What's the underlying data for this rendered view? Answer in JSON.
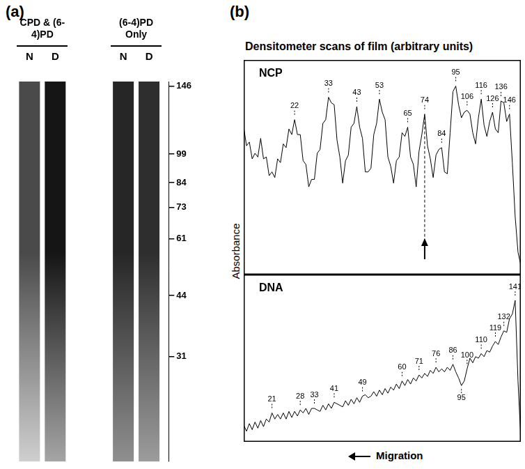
{
  "panels": [
    {
      "label": "(a)",
      "gel": {
        "groups": [
          {
            "title": "CPD & (6-4)PD",
            "lanes": [
              "N",
              "D"
            ]
          },
          {
            "title": "(6-4)PD Only",
            "lanes": [
              "N",
              "D"
            ]
          }
        ],
        "log": "y",
        "ylim": [
          17,
          150
        ],
        "yticks": [
          146,
          99,
          84,
          73,
          61,
          44,
          31
        ]
      }
    },
    {
      "label": "(b)",
      "title": "Densitometer scans of film (arbitrary units)",
      "y_label": "Absorbance",
      "x_label": "Migration"
    }
  ],
  "chart_data": [
    {
      "type": "line",
      "title": "NCP",
      "color": "#000000",
      "grid": false,
      "tick_labels": false,
      "xlim": [
        0,
        98
      ],
      "ylim": [
        0,
        115
      ],
      "x": [
        0,
        1,
        2,
        3,
        4,
        5,
        6,
        7,
        8,
        9,
        10,
        11,
        12,
        13,
        14,
        15,
        16,
        17,
        18,
        19,
        20,
        21,
        22,
        23,
        24,
        25,
        26,
        27,
        28,
        29,
        30,
        31,
        32,
        33,
        34,
        35,
        36,
        37,
        38,
        39,
        40,
        41,
        42,
        43,
        44,
        45,
        46,
        47,
        48,
        49,
        50,
        51,
        52,
        53,
        54,
        55,
        56,
        57,
        58,
        59,
        60,
        61,
        62,
        63,
        64,
        65,
        66,
        67,
        68,
        69,
        70,
        71,
        72,
        73,
        74,
        75,
        76,
        77,
        78,
        79,
        80,
        81,
        82,
        83,
        84,
        85,
        86,
        87,
        88,
        89,
        90,
        91,
        92,
        93,
        94,
        95,
        96,
        97,
        98
      ],
      "values": [
        79,
        69,
        71,
        62,
        65,
        63,
        73,
        62,
        63,
        53,
        55,
        52,
        62,
        60,
        70,
        68,
        78,
        75,
        83,
        75,
        75,
        61,
        59,
        47,
        51,
        51,
        65,
        67,
        81,
        83,
        95,
        92,
        91,
        72,
        63,
        49,
        61,
        64,
        79,
        81,
        90,
        79,
        73,
        55,
        55,
        57,
        75,
        81,
        94,
        87,
        83,
        63,
        58,
        49,
        61,
        63,
        76,
        74,
        79,
        63,
        59,
        47,
        66,
        75,
        86,
        69,
        62,
        52,
        64,
        67,
        68,
        55,
        54,
        76,
        98,
        101,
        91,
        84,
        87,
        88,
        86,
        76,
        70,
        84,
        94,
        80,
        74,
        82,
        87,
        78,
        76,
        93,
        92,
        82,
        86,
        60,
        31,
        12,
        5
      ],
      "annotations": [
        {
          "x": 18,
          "y": 83,
          "text": "22"
        },
        {
          "x": 30,
          "y": 95,
          "text": "33"
        },
        {
          "x": 40,
          "y": 90,
          "text": "43"
        },
        {
          "x": 48,
          "y": 94,
          "text": "53"
        },
        {
          "x": 58,
          "y": 79,
          "text": "65"
        },
        {
          "x": 64,
          "y": 86,
          "text": "74",
          "arrow": true
        },
        {
          "x": 70,
          "y": 68,
          "text": "84"
        },
        {
          "x": 75,
          "y": 101,
          "text": "95"
        },
        {
          "x": 79,
          "y": 88,
          "text": "106"
        },
        {
          "x": 84,
          "y": 94,
          "text": "116"
        },
        {
          "x": 88,
          "y": 87,
          "text": "126"
        },
        {
          "x": 91,
          "y": 93,
          "text": "136"
        },
        {
          "x": 94,
          "y": 86,
          "text": "146"
        }
      ]
    },
    {
      "type": "line",
      "title": "DNA",
      "color": "#000000",
      "grid": false,
      "tick_labels": false,
      "xlim": [
        0,
        98
      ],
      "ylim": [
        0,
        110
      ],
      "x": [
        0,
        1,
        2,
        3,
        4,
        5,
        6,
        7,
        8,
        9,
        10,
        11,
        12,
        13,
        14,
        15,
        16,
        17,
        18,
        19,
        20,
        21,
        22,
        23,
        24,
        25,
        26,
        27,
        28,
        29,
        30,
        31,
        32,
        33,
        34,
        35,
        36,
        37,
        38,
        39,
        40,
        41,
        42,
        43,
        44,
        45,
        46,
        47,
        48,
        49,
        50,
        51,
        52,
        53,
        54,
        55,
        56,
        57,
        58,
        59,
        60,
        61,
        62,
        63,
        64,
        65,
        66,
        67,
        68,
        69,
        70,
        71,
        72,
        73,
        74,
        75,
        76,
        77,
        78,
        79,
        80,
        81,
        82,
        83,
        84,
        85,
        86,
        87,
        88,
        89,
        90,
        91,
        92,
        93,
        94,
        95,
        96,
        97,
        98
      ],
      "values": [
        11,
        7,
        12,
        8,
        13,
        9,
        14,
        10,
        15,
        13,
        19,
        15,
        18,
        15,
        19,
        15,
        20,
        16,
        20,
        17,
        21,
        19,
        22,
        18,
        22,
        22,
        21,
        20,
        24,
        21,
        25,
        22,
        26,
        25,
        24,
        23,
        27,
        24,
        28,
        25,
        29,
        26,
        30,
        31,
        29,
        30,
        33,
        30,
        34,
        31,
        35,
        32,
        36,
        34,
        38,
        35,
        40,
        37,
        41,
        38,
        42,
        40,
        44,
        42,
        45,
        43,
        47,
        45,
        49,
        46,
        48,
        46,
        49,
        47,
        51,
        46,
        42,
        37,
        40,
        48,
        55,
        52,
        56,
        55,
        58,
        56,
        60,
        59,
        63,
        66,
        64,
        69,
        73,
        72,
        81,
        84,
        93,
        40,
        2
      ],
      "annotations": [
        {
          "x": 10,
          "y": 19,
          "text": "21"
        },
        {
          "x": 20,
          "y": 21,
          "text": "28"
        },
        {
          "x": 25,
          "y": 22,
          "text": "33"
        },
        {
          "x": 32,
          "y": 26,
          "text": "41"
        },
        {
          "x": 42,
          "y": 30,
          "text": "49"
        },
        {
          "x": 56,
          "y": 40,
          "text": "60"
        },
        {
          "x": 62,
          "y": 44,
          "text": "71"
        },
        {
          "x": 68,
          "y": 49,
          "text": "76"
        },
        {
          "x": 74,
          "y": 51,
          "text": "86"
        },
        {
          "x": 77,
          "y": 37,
          "text": "95",
          "position": "below"
        },
        {
          "x": 79,
          "y": 48,
          "text": "100"
        },
        {
          "x": 84,
          "y": 58,
          "text": "110"
        },
        {
          "x": 89,
          "y": 66,
          "text": "119"
        },
        {
          "x": 92,
          "y": 73,
          "text": "132"
        },
        {
          "x": 96,
          "y": 93,
          "text": "141"
        }
      ]
    }
  ]
}
